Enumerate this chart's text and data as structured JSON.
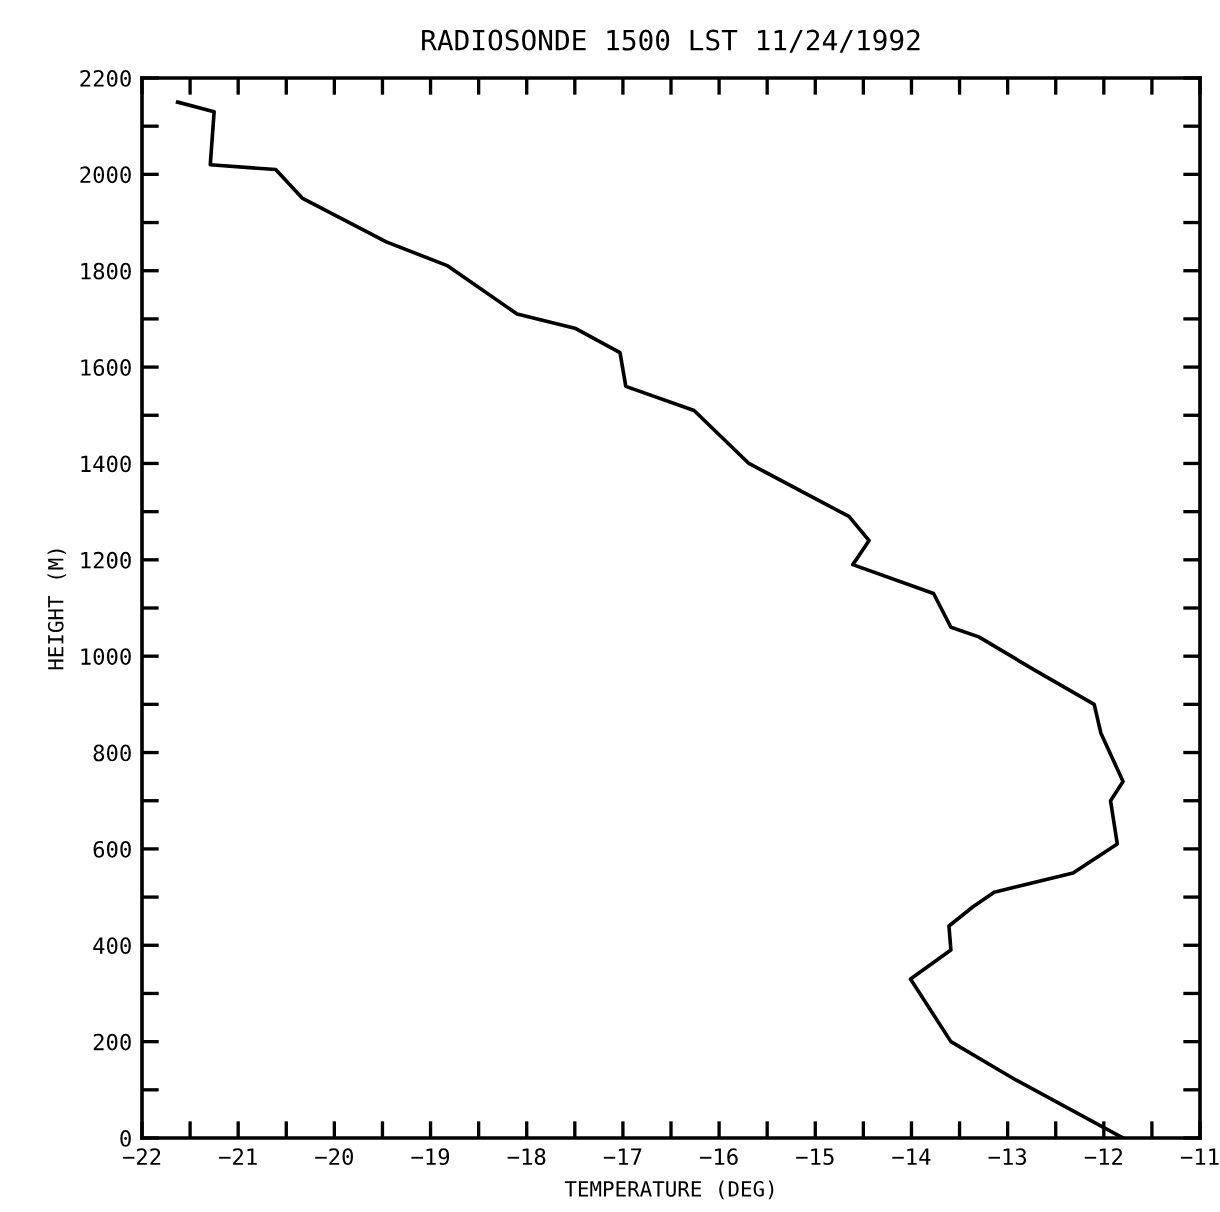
{
  "chart_data": {
    "type": "line",
    "title": "RADIOSONDE 1500 LST 11/24/1992",
    "xlabel": "TEMPERATURE (DEG)",
    "ylabel": "HEIGHT (M)",
    "x": [
      -21.63,
      -21.25,
      -21.29,
      -20.61,
      -20.33,
      -19.46,
      -18.82,
      -18.1,
      -17.49,
      -17.03,
      -16.97,
      -16.26,
      -15.69,
      -14.65,
      -14.44,
      -14.61,
      -13.77,
      -13.59,
      -13.3,
      -12.71,
      -12.1,
      -12.03,
      -11.8,
      -11.93,
      -11.86,
      -12.32,
      -13.14,
      -13.36,
      -13.61,
      -13.59,
      -14.01,
      -13.59,
      -12.91,
      -11.8
    ],
    "values": [
      2150,
      2130,
      2020,
      2010,
      1950,
      1860,
      1810,
      1710,
      1680,
      1630,
      1560,
      1510,
      1400,
      1290,
      1240,
      1190,
      1130,
      1060,
      1040,
      970,
      900,
      840,
      740,
      700,
      610,
      550,
      510,
      480,
      440,
      390,
      330,
      200,
      120,
      0
    ],
    "color": "#000000",
    "line_style": "solid",
    "marker": "none",
    "grid": false,
    "legend": false,
    "xlim": [
      -22,
      -11
    ],
    "ylim": [
      0,
      2200
    ],
    "xticks": [
      -22,
      {
        "value": -21.5,
        "label": null
      },
      -21,
      {
        "value": -20.5,
        "label": null
      },
      -20,
      {
        "value": -19.5,
        "label": null
      },
      -19,
      {
        "value": -18.5,
        "label": null
      },
      -18,
      {
        "value": -17.5,
        "label": null
      },
      -17,
      {
        "value": -16.5,
        "label": null
      },
      -16,
      {
        "value": -15.5,
        "label": null
      },
      -15,
      {
        "value": -14.5,
        "label": null
      },
      -14,
      {
        "value": -13.5,
        "label": null
      },
      -13,
      {
        "value": -12.5,
        "label": null
      },
      -12,
      {
        "value": -11.5,
        "label": null
      },
      -11
    ],
    "yticks": [
      0,
      {
        "value": 100,
        "label": null
      },
      200,
      {
        "value": 300,
        "label": null
      },
      400,
      {
        "value": 500,
        "label": null
      },
      600,
      {
        "value": 700,
        "label": null
      },
      800,
      {
        "value": 900,
        "label": null
      },
      1000,
      {
        "value": 1100,
        "label": null
      },
      1200,
      {
        "value": 1300,
        "label": null
      },
      1400,
      {
        "value": 1500,
        "label": null
      },
      1600,
      {
        "value": 1700,
        "label": null
      },
      1800,
      {
        "value": 1900,
        "label": null
      },
      2000,
      {
        "value": 2100,
        "label": null
      },
      2200
    ]
  }
}
